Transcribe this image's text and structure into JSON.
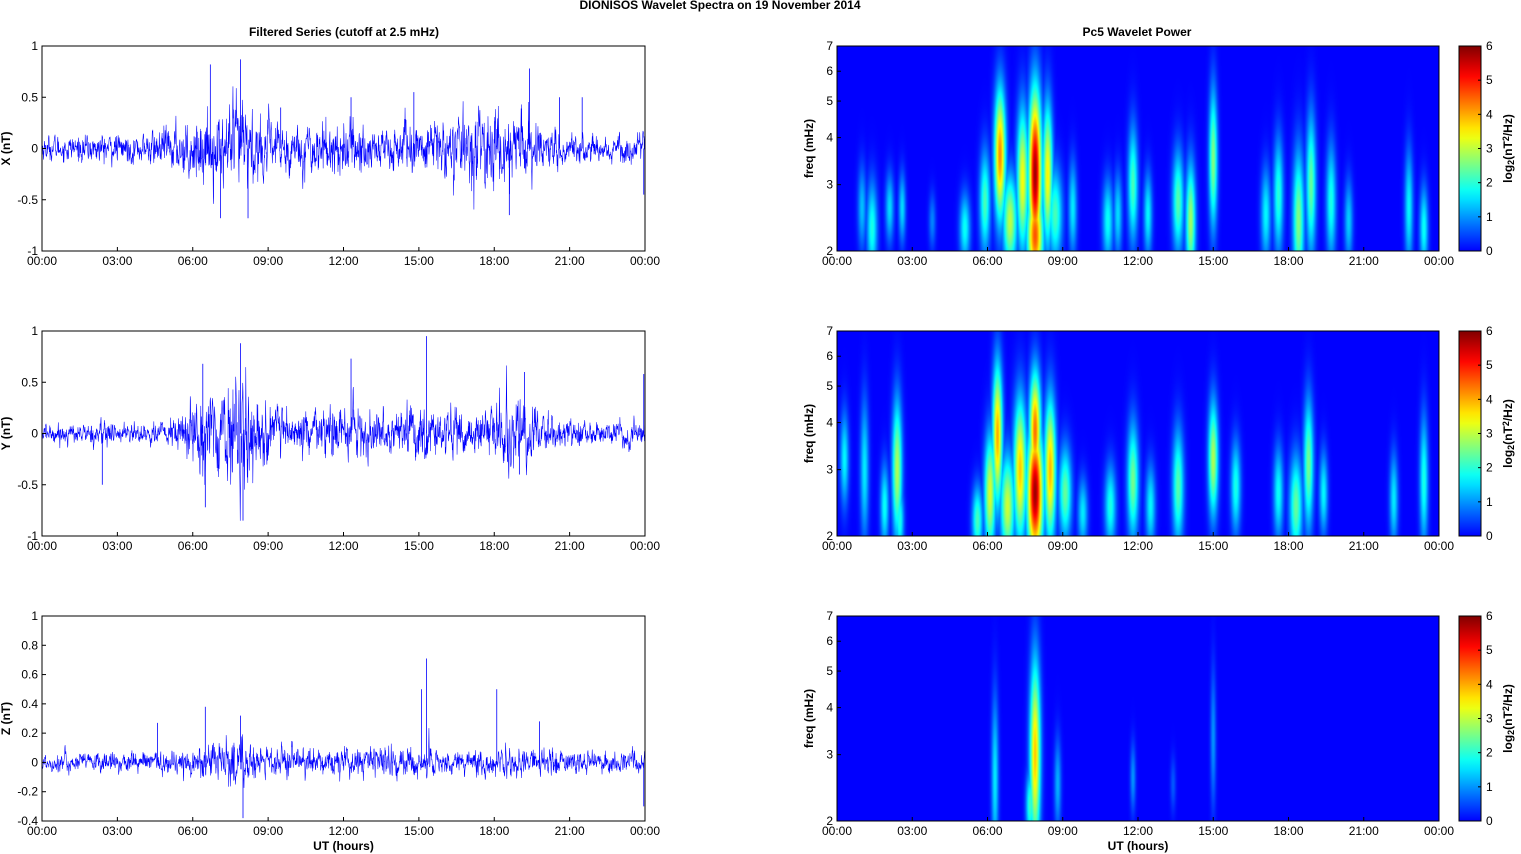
{
  "figure": {
    "title": "DIONISOS Wavelet Spectra on 19 November  2014",
    "left_column_title": "Filtered Series (cutoff at 2.5 mHz)",
    "right_column_title": "Pc5 Wavelet Power"
  },
  "chart_data": [
    {
      "type": "line",
      "ylabel": "X (nT)",
      "xlabel": "",
      "xlim": [
        0,
        24
      ],
      "ylim": [
        -1,
        1
      ],
      "x_tick_labels": [
        "00:00",
        "03:00",
        "06:00",
        "09:00",
        "12:00",
        "15:00",
        "18:00",
        "21:00",
        "00:00"
      ],
      "y_ticks": [
        -1,
        -0.5,
        0,
        0.5,
        1
      ],
      "series": [
        {
          "color": "#0000ff",
          "amplitude_envelope": [
            [
              0,
              0.12
            ],
            [
              2,
              0.15
            ],
            [
              4,
              0.15
            ],
            [
              6,
              0.3
            ],
            [
              6.5,
              0.4
            ],
            [
              7,
              0.35
            ],
            [
              8,
              0.55
            ],
            [
              8.5,
              0.35
            ],
            [
              10,
              0.25
            ],
            [
              12,
              0.3
            ],
            [
              14,
              0.25
            ],
            [
              16,
              0.3
            ],
            [
              18,
              0.45
            ],
            [
              19,
              0.4
            ],
            [
              20,
              0.2
            ],
            [
              22,
              0.15
            ],
            [
              24,
              0.15
            ]
          ],
          "peaks": [
            [
              6.7,
              0.82
            ],
            [
              7.1,
              -0.68
            ],
            [
              7.9,
              0.87
            ],
            [
              8.2,
              -0.68
            ],
            [
              9.5,
              0.4
            ],
            [
              12.3,
              0.5
            ],
            [
              14.8,
              0.55
            ],
            [
              18.6,
              -0.65
            ],
            [
              19.4,
              0.78
            ],
            [
              20.6,
              0.5
            ],
            [
              21.5,
              0.5
            ],
            [
              23.95,
              -0.45
            ]
          ]
        }
      ]
    },
    {
      "type": "line",
      "ylabel": "Y (nT)",
      "xlabel": "",
      "xlim": [
        0,
        24
      ],
      "ylim": [
        -1,
        1
      ],
      "x_tick_labels": [
        "00:00",
        "03:00",
        "06:00",
        "09:00",
        "12:00",
        "15:00",
        "18:00",
        "21:00",
        "00:00"
      ],
      "y_ticks": [
        -1,
        -0.5,
        0,
        0.5,
        1
      ],
      "series": [
        {
          "color": "#0000ff",
          "amplitude_envelope": [
            [
              0,
              0.1
            ],
            [
              2,
              0.1
            ],
            [
              2.4,
              0.2
            ],
            [
              3,
              0.08
            ],
            [
              5,
              0.15
            ],
            [
              6,
              0.35
            ],
            [
              7,
              0.45
            ],
            [
              8,
              0.6
            ],
            [
              8.5,
              0.4
            ],
            [
              10,
              0.2
            ],
            [
              12,
              0.3
            ],
            [
              14,
              0.2
            ],
            [
              15,
              0.35
            ],
            [
              16,
              0.2
            ],
            [
              18,
              0.3
            ],
            [
              18.5,
              0.45
            ],
            [
              19.5,
              0.3
            ],
            [
              21,
              0.15
            ],
            [
              24,
              0.12
            ]
          ],
          "peaks": [
            [
              2.4,
              -0.5
            ],
            [
              6.4,
              0.68
            ],
            [
              6.5,
              -0.72
            ],
            [
              7.9,
              0.88
            ],
            [
              8.0,
              -0.85
            ],
            [
              12.3,
              0.73
            ],
            [
              15.3,
              0.95
            ],
            [
              19.2,
              0.6
            ],
            [
              19.0,
              -0.4
            ],
            [
              23.95,
              0.58
            ]
          ]
        }
      ]
    },
    {
      "type": "line",
      "ylabel": "Z (nT)",
      "xlabel": "UT (hours)",
      "xlim": [
        0,
        24
      ],
      "ylim": [
        -0.4,
        1
      ],
      "x_tick_labels": [
        "00:00",
        "03:00",
        "06:00",
        "09:00",
        "12:00",
        "15:00",
        "18:00",
        "21:00",
        "00:00"
      ],
      "y_ticks": [
        -0.4,
        -0.2,
        0,
        0.2,
        0.4,
        0.6,
        0.8,
        1
      ],
      "series": [
        {
          "color": "#0000ff",
          "amplitude_envelope": [
            [
              0,
              0.07
            ],
            [
              4,
              0.08
            ],
            [
              6,
              0.1
            ],
            [
              7,
              0.15
            ],
            [
              8,
              0.2
            ],
            [
              8.5,
              0.12
            ],
            [
              12,
              0.1
            ],
            [
              15,
              0.12
            ],
            [
              16,
              0.1
            ],
            [
              19,
              0.1
            ],
            [
              22,
              0.08
            ],
            [
              24,
              0.08
            ]
          ],
          "peaks": [
            [
              4.6,
              0.27
            ],
            [
              6.5,
              0.38
            ],
            [
              7.9,
              0.32
            ],
            [
              8.0,
              -0.38
            ],
            [
              15.3,
              0.71
            ],
            [
              15.1,
              0.5
            ],
            [
              18.1,
              0.5
            ],
            [
              19.8,
              0.28
            ],
            [
              23.95,
              -0.3
            ]
          ]
        }
      ]
    },
    {
      "type": "heatmap",
      "ylabel": "freq (mHz)",
      "xlabel": "",
      "xlim": [
        0,
        24
      ],
      "ylim": [
        2,
        7
      ],
      "y_scale": "log",
      "x_tick_labels": [
        "00:00",
        "03:00",
        "06:00",
        "09:00",
        "12:00",
        "15:00",
        "18:00",
        "21:00",
        "00:00"
      ],
      "y_ticks": [
        2,
        3,
        4,
        5,
        6,
        7
      ],
      "colorbar": {
        "label": "log2(nT2/Hz)",
        "label_main": "log",
        "label_sub": "2",
        "label_paren_open": "(nT",
        "label_sup": "2",
        "label_tail": "/Hz)",
        "range": [
          0,
          6
        ],
        "ticks": [
          0,
          1,
          2,
          3,
          4,
          5,
          6
        ],
        "colormap": "jet"
      },
      "blobs": [
        [
          1.0,
          2.6,
          0.12,
          0.18,
          1.3
        ],
        [
          1.4,
          2.3,
          0.15,
          0.2,
          1.9
        ],
        [
          2.1,
          2.6,
          0.12,
          0.15,
          1.5
        ],
        [
          2.6,
          2.6,
          0.1,
          0.15,
          1.5
        ],
        [
          3.8,
          2.4,
          0.1,
          0.12,
          0.9
        ],
        [
          5.1,
          2.3,
          0.15,
          0.15,
          1.8
        ],
        [
          5.9,
          2.7,
          0.15,
          0.22,
          2.2
        ],
        [
          6.5,
          3.6,
          0.16,
          0.28,
          4.2
        ],
        [
          6.9,
          2.4,
          0.2,
          0.2,
          3.0
        ],
        [
          7.4,
          3.1,
          0.16,
          0.3,
          3.4
        ],
        [
          7.9,
          3.2,
          0.18,
          0.35,
          5.8
        ],
        [
          7.9,
          2.2,
          0.22,
          0.2,
          4.6
        ],
        [
          8.4,
          3.2,
          0.14,
          0.3,
          3.5
        ],
        [
          8.7,
          2.5,
          0.2,
          0.2,
          2.2
        ],
        [
          9.4,
          2.6,
          0.12,
          0.2,
          1.6
        ],
        [
          10.8,
          2.4,
          0.15,
          0.18,
          1.8
        ],
        [
          11.2,
          2.5,
          0.12,
          0.18,
          1.5
        ],
        [
          11.8,
          3.0,
          0.14,
          0.25,
          2.2
        ],
        [
          12.4,
          2.5,
          0.12,
          0.18,
          1.7
        ],
        [
          13.6,
          2.7,
          0.16,
          0.22,
          2.3
        ],
        [
          14.1,
          2.4,
          0.14,
          0.25,
          2.8
        ],
        [
          15.0,
          3.5,
          0.12,
          0.3,
          2.6
        ],
        [
          17.1,
          2.5,
          0.14,
          0.2,
          1.7
        ],
        [
          17.6,
          2.8,
          0.14,
          0.25,
          2.0
        ],
        [
          18.4,
          2.4,
          0.16,
          0.3,
          2.6
        ],
        [
          18.9,
          3.0,
          0.14,
          0.3,
          2.4
        ],
        [
          19.7,
          2.7,
          0.14,
          0.25,
          1.9
        ],
        [
          20.4,
          2.4,
          0.12,
          0.18,
          1.4
        ],
        [
          22.8,
          2.6,
          0.12,
          0.25,
          1.7
        ],
        [
          23.4,
          2.3,
          0.12,
          0.18,
          1.8
        ]
      ]
    },
    {
      "type": "heatmap",
      "ylabel": "freq (mHz)",
      "xlabel": "",
      "xlim": [
        0,
        24
      ],
      "ylim": [
        2,
        7
      ],
      "y_scale": "log",
      "x_tick_labels": [
        "00:00",
        "03:00",
        "06:00",
        "09:00",
        "12:00",
        "15:00",
        "18:00",
        "21:00",
        "00:00"
      ],
      "y_ticks": [
        2,
        3,
        4,
        5,
        6,
        7
      ],
      "colorbar": {
        "label": "log2(nT2/Hz)",
        "label_main": "log",
        "label_sub": "2",
        "label_paren_open": "(nT",
        "label_sup": "2",
        "label_tail": "/Hz)",
        "range": [
          0,
          6
        ],
        "ticks": [
          0,
          1,
          2,
          3,
          4,
          5,
          6
        ],
        "colormap": "jet"
      },
      "blobs": [
        [
          0.3,
          3.2,
          0.12,
          0.2,
          1.7
        ],
        [
          1.1,
          3.0,
          0.12,
          0.3,
          1.6
        ],
        [
          1.9,
          2.4,
          0.12,
          0.18,
          1.8
        ],
        [
          2.4,
          3.0,
          0.14,
          0.3,
          2.9
        ],
        [
          2.5,
          2.2,
          0.12,
          0.15,
          1.9
        ],
        [
          5.6,
          2.2,
          0.15,
          0.15,
          2.2
        ],
        [
          6.1,
          2.6,
          0.16,
          0.25,
          3.2
        ],
        [
          6.4,
          3.7,
          0.14,
          0.3,
          4.0
        ],
        [
          6.8,
          2.4,
          0.2,
          0.22,
          3.1
        ],
        [
          7.3,
          3.0,
          0.18,
          0.3,
          3.8
        ],
        [
          7.9,
          2.6,
          0.22,
          0.28,
          5.8
        ],
        [
          7.9,
          3.8,
          0.16,
          0.25,
          4.4
        ],
        [
          8.5,
          3.0,
          0.16,
          0.3,
          3.9
        ],
        [
          9.1,
          2.6,
          0.18,
          0.2,
          2.4
        ],
        [
          9.8,
          2.3,
          0.14,
          0.15,
          1.6
        ],
        [
          10.9,
          2.4,
          0.16,
          0.18,
          1.9
        ],
        [
          11.8,
          2.8,
          0.16,
          0.25,
          2.5
        ],
        [
          12.5,
          2.4,
          0.14,
          0.18,
          1.7
        ],
        [
          13.6,
          2.7,
          0.16,
          0.25,
          2.3
        ],
        [
          15.0,
          3.2,
          0.14,
          0.25,
          2.9
        ],
        [
          15.9,
          2.7,
          0.14,
          0.2,
          1.9
        ],
        [
          17.6,
          2.6,
          0.14,
          0.2,
          1.8
        ],
        [
          18.3,
          2.4,
          0.18,
          0.22,
          2.4
        ],
        [
          18.8,
          3.1,
          0.14,
          0.28,
          2.5
        ],
        [
          19.4,
          2.6,
          0.12,
          0.18,
          1.7
        ],
        [
          22.2,
          2.5,
          0.12,
          0.2,
          1.6
        ],
        [
          23.4,
          2.8,
          0.12,
          0.28,
          1.9
        ]
      ]
    },
    {
      "type": "heatmap",
      "ylabel": "freq (mHz)",
      "xlabel": "UT (hours)",
      "xlim": [
        0,
        24
      ],
      "ylim": [
        2,
        7
      ],
      "y_scale": "log",
      "x_tick_labels": [
        "00:00",
        "03:00",
        "06:00",
        "09:00",
        "12:00",
        "15:00",
        "18:00",
        "21:00",
        "00:00"
      ],
      "y_ticks": [
        2,
        3,
        4,
        5,
        6,
        7
      ],
      "colorbar": {
        "label": "log2(nT2/Hz)",
        "label_main": "log",
        "label_sub": "2",
        "label_paren_open": "(nT",
        "label_sup": "2",
        "label_tail": "/Hz)",
        "range": [
          0,
          6
        ],
        "ticks": [
          0,
          1,
          2,
          3,
          4,
          5,
          6
        ],
        "colormap": "jet"
      },
      "blobs": [
        [
          6.3,
          2.6,
          0.1,
          0.35,
          1.6
        ],
        [
          7.9,
          3.0,
          0.15,
          0.4,
          3.8
        ],
        [
          7.7,
          2.2,
          0.12,
          0.15,
          2.1
        ],
        [
          8.8,
          2.5,
          0.1,
          0.2,
          1.2
        ],
        [
          11.8,
          2.6,
          0.08,
          0.15,
          1.0
        ],
        [
          15.0,
          3.3,
          0.08,
          0.3,
          1.0
        ],
        [
          13.4,
          2.5,
          0.08,
          0.12,
          0.6
        ]
      ]
    }
  ]
}
